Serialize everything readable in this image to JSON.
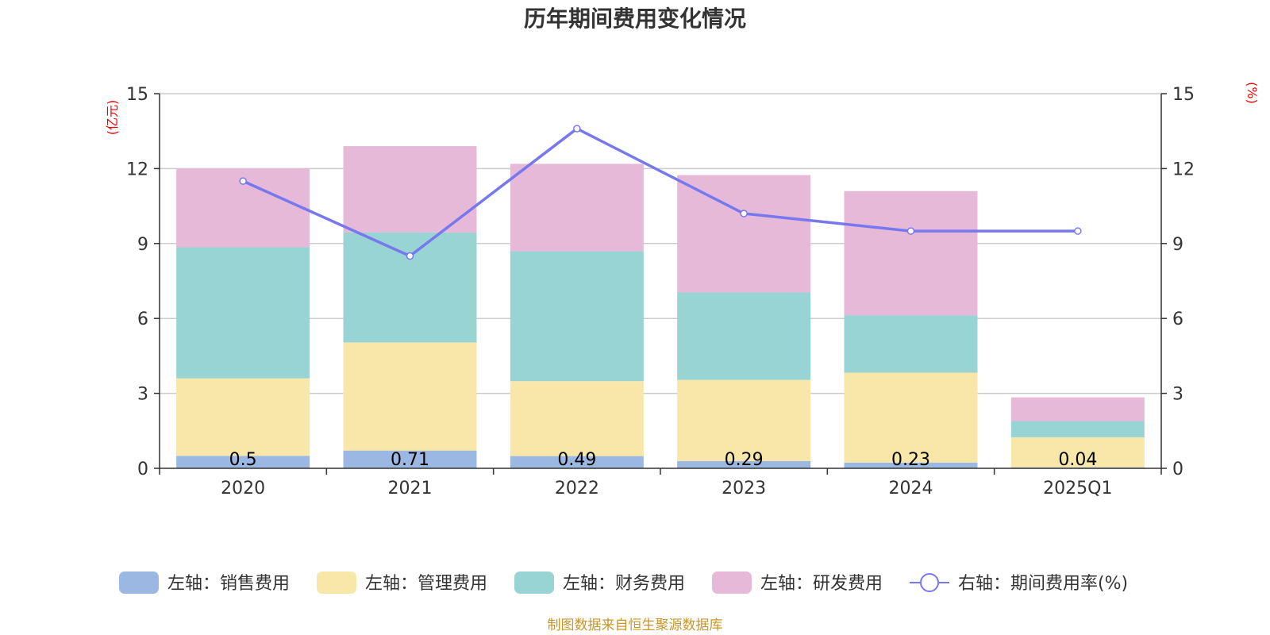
{
  "chart_data": {
    "type": "bar",
    "stacked": true,
    "title": "历年期间费用变化情况",
    "categories": [
      "2020",
      "2021",
      "2022",
      "2023",
      "2024",
      "2025Q1"
    ],
    "left_axis": {
      "unit": "(亿元)",
      "ylim": [
        0,
        15
      ],
      "ticks": [
        "0",
        "3",
        "6",
        "9",
        "12",
        "15"
      ]
    },
    "right_axis": {
      "unit": "(%)",
      "ylim": [
        0,
        15
      ],
      "ticks": [
        "0",
        "3",
        "6",
        "9",
        "12",
        "15"
      ]
    },
    "series": [
      {
        "name": "销售费用",
        "legend": "左轴：销售费用",
        "axis": "left",
        "color": "#9bb8e3",
        "values": [
          0.5,
          0.71,
          0.49,
          0.29,
          0.23,
          0.04
        ],
        "labels": [
          "0.5",
          "0.71",
          "0.49",
          "0.29",
          "0.23",
          "0.04"
        ]
      },
      {
        "name": "管理费用",
        "legend": "左轴：管理费用",
        "axis": "left",
        "color": "#f8e7a9",
        "values": [
          3.1,
          4.33,
          3.0,
          3.25,
          3.6,
          1.2
        ]
      },
      {
        "name": "财务费用",
        "legend": "左轴：财务费用",
        "axis": "left",
        "color": "#98d4d4",
        "values": [
          5.25,
          4.4,
          5.2,
          3.5,
          2.3,
          0.65
        ]
      },
      {
        "name": "研发费用",
        "legend": "左轴：研发费用",
        "axis": "left",
        "color": "#e7b9d8",
        "values": [
          3.15,
          3.46,
          3.5,
          4.7,
          4.97,
          0.95
        ]
      }
    ],
    "line": {
      "name": "期间费用率(%)",
      "legend": "右轴：期间费用率(%)",
      "axis": "right",
      "color": "#7878ee",
      "values": [
        11.5,
        8.5,
        13.6,
        10.2,
        9.5,
        9.5
      ]
    },
    "grid": true,
    "legend_position": "bottom",
    "source": "制图数据来自恒生聚源数据库"
  }
}
